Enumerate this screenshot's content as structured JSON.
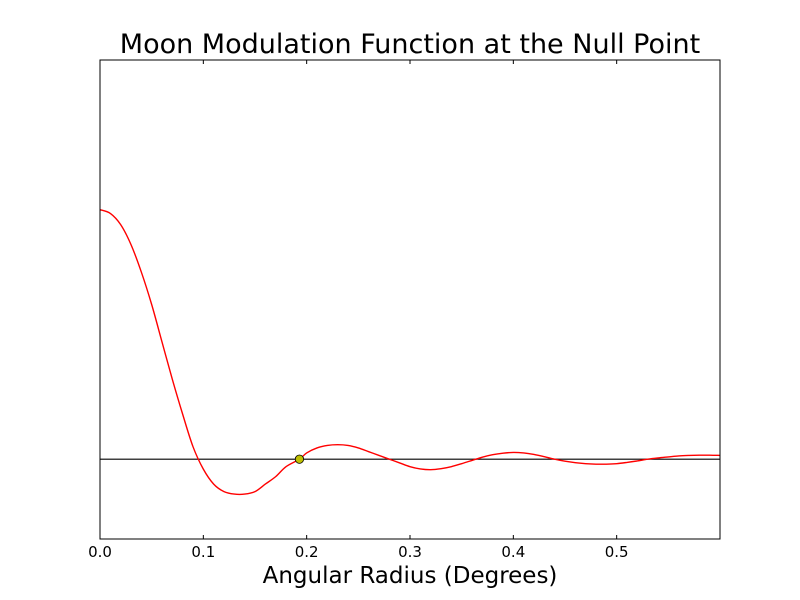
{
  "chart_data": {
    "type": "line",
    "title": "Moon Modulation Function at the Null Point",
    "xlabel": "Angular Radius (Degrees)",
    "ylabel": "",
    "xlim": [
      0.0,
      0.6
    ],
    "ylim": [
      -0.32,
      1.6
    ],
    "x_ticks": [
      "0.0",
      "0.1",
      "0.2",
      "0.3",
      "0.4",
      "0.5"
    ],
    "y_ticks": [],
    "grid": false,
    "legend": "none",
    "series": [
      {
        "color": "#ff0000",
        "x": [
          0.0,
          0.01,
          0.02,
          0.03,
          0.04,
          0.05,
          0.06,
          0.07,
          0.08,
          0.09,
          0.1,
          0.11,
          0.12,
          0.13,
          0.14,
          0.15,
          0.16,
          0.17,
          0.18,
          0.193,
          0.2,
          0.21,
          0.22,
          0.23,
          0.24,
          0.25,
          0.26,
          0.27,
          0.28,
          0.29,
          0.3,
          0.31,
          0.32,
          0.33,
          0.34,
          0.35,
          0.36,
          0.37,
          0.38,
          0.39,
          0.4,
          0.41,
          0.42,
          0.43,
          0.44,
          0.45,
          0.46,
          0.47,
          0.48,
          0.49,
          0.5,
          0.51,
          0.52,
          0.53,
          0.54,
          0.55,
          0.56,
          0.57,
          0.58,
          0.59,
          0.6
        ],
        "y": [
          1.0,
          0.985,
          0.94,
          0.86,
          0.75,
          0.62,
          0.47,
          0.32,
          0.18,
          0.05,
          -0.04,
          -0.1,
          -0.13,
          -0.14,
          -0.14,
          -0.13,
          -0.1,
          -0.07,
          -0.03,
          0.0,
          0.025,
          0.045,
          0.055,
          0.058,
          0.055,
          0.045,
          0.03,
          0.015,
          0.0,
          -0.015,
          -0.03,
          -0.039,
          -0.042,
          -0.038,
          -0.03,
          -0.018,
          -0.005,
          0.008,
          0.018,
          0.024,
          0.027,
          0.025,
          0.019,
          0.01,
          0.0,
          -0.008,
          -0.014,
          -0.018,
          -0.02,
          -0.02,
          -0.018,
          -0.013,
          -0.007,
          0.0,
          0.005,
          0.009,
          0.013,
          0.015,
          0.016,
          0.016,
          0.015
        ]
      }
    ],
    "zero_line": {
      "y": 0.0,
      "color": "#000000"
    },
    "marker": {
      "x": 0.193,
      "y": 0.0,
      "color": "#bfbf00"
    }
  }
}
